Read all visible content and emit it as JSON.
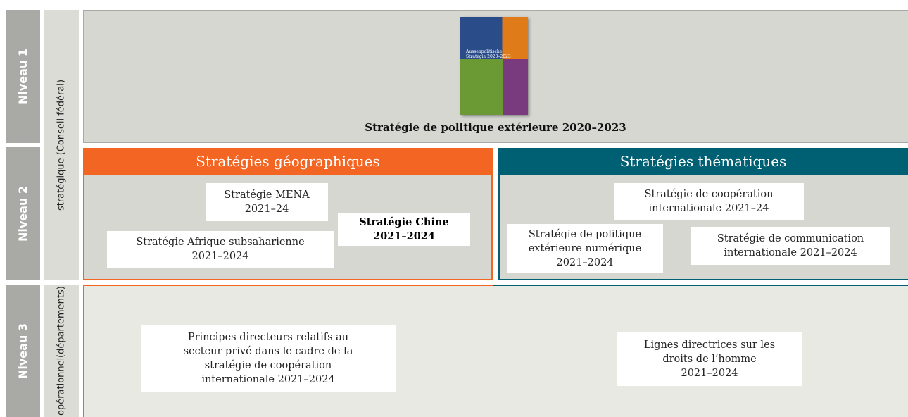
{
  "levels": [
    {
      "label": "Niveau 1"
    },
    {
      "label": "Niveau 2"
    },
    {
      "label": "Niveau 3"
    }
  ],
  "scopes": [
    {
      "label": "stratégique (Conseil fédéral)"
    },
    {
      "lines": [
        "opérationnel",
        "(départements)"
      ]
    }
  ],
  "level1": {
    "cover": {
      "lines": [
        "Aussenpolitische",
        "Strategie 2020–2023"
      ]
    },
    "caption": "Stratégie de politique extérieure 2020–2023"
  },
  "level2": {
    "geographic": {
      "title": "Stratégies géographiques",
      "items": [
        {
          "lines": [
            "Stratégie MENA",
            "2021–24"
          ]
        },
        {
          "lines": [
            "Stratégie Chine",
            "2021–2024"
          ]
        },
        {
          "lines": [
            "Stratégie Afrique subsaharienne",
            "2021–2024"
          ]
        }
      ]
    },
    "thematic": {
      "title": "Stratégies thématiques",
      "items": [
        {
          "lines": [
            "Stratégie de coopération",
            "internationale 2021–24"
          ]
        },
        {
          "lines": [
            "Stratégie de politique",
            "extérieure numérique",
            "2021–2024"
          ]
        },
        {
          "lines": [
            "Stratégie de communication",
            "internationale 2021–2024"
          ]
        }
      ]
    }
  },
  "level3": {
    "items": [
      {
        "lines": [
          "Principes directeurs relatifs au",
          "secteur privé dans le cadre de la",
          "stratégie de coopération",
          "internationale 2021–2024"
        ]
      },
      {
        "lines": [
          "Lignes directrices sur les",
          "droits de l’homme",
          "2021–2024"
        ]
      }
    ]
  }
}
